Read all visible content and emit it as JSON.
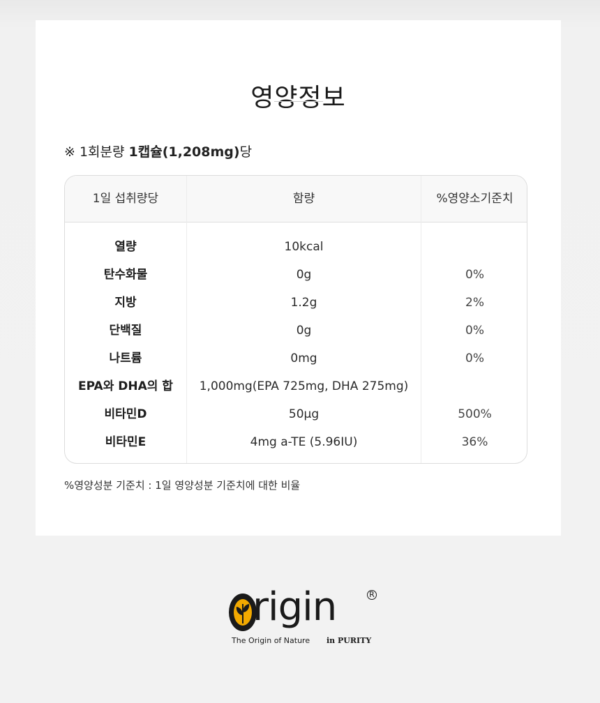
{
  "title": "영양정보",
  "serving": {
    "prefix": "※ 1회분량 ",
    "bold": "1캡슐(1,208mg)",
    "suffix": "당"
  },
  "table": {
    "headers": [
      "1일 섭취량당",
      "함량",
      "%영양소기준치"
    ],
    "rows": [
      {
        "name": "열량",
        "amount": "10kcal",
        "dv": ""
      },
      {
        "name": "탄수화물",
        "amount": "0g",
        "dv": "0%"
      },
      {
        "name": "지방",
        "amount": "1.2g",
        "dv": "2%"
      },
      {
        "name": "단백질",
        "amount": "0g",
        "dv": "0%"
      },
      {
        "name": "나트륨",
        "amount": "0mg",
        "dv": "0%"
      },
      {
        "name": "EPA와 DHA의 합",
        "amount": "1,000mg(EPA 725mg, DHA 275mg)",
        "dv": ""
      },
      {
        "name": "비타민D",
        "amount": "50μg",
        "dv": "500%"
      },
      {
        "name": "비타민E",
        "amount": "4mg a-TE (5.96IU)",
        "dv": "36%"
      }
    ]
  },
  "footnote": "%영양성분 기준치 : 1일 영양성분 기준치에 대한 비율",
  "logo": {
    "word": "rigin",
    "registered": "R",
    "tagline": "The Origin of Nature",
    "tagline_bold": "in PURITY",
    "colors": {
      "brand_dark": "#1a1a1a",
      "brand_gold": "#f2a900"
    }
  }
}
